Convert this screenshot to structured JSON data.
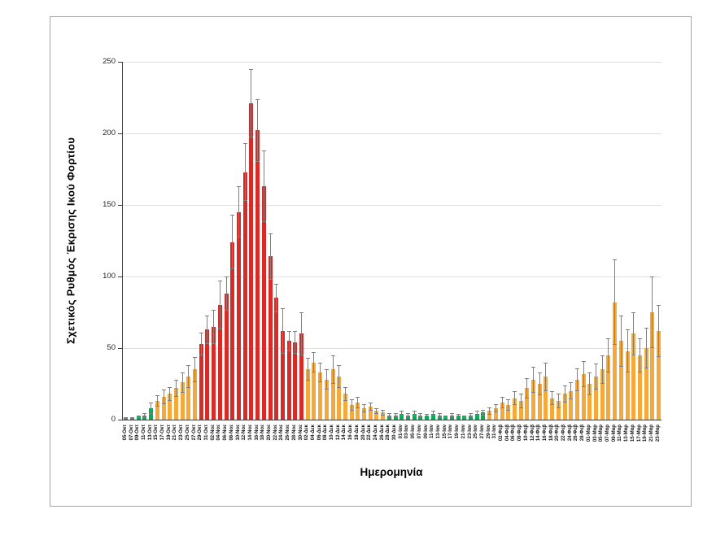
{
  "colors": {
    "green": "#00B050",
    "orange": "#F5A93B",
    "red": "#D62B27",
    "error": "#7f7f7f",
    "grid": "#dedede",
    "axis": "#3f3f3f"
  },
  "chart_data": {
    "type": "bar",
    "title": "",
    "xlabel": "Ημερομηνία",
    "ylabel": "Σχετικός Ρυθμός Έκρισης Ικού Φορτίου",
    "ylim": [
      0,
      250
    ],
    "y_ticks": [
      0,
      50,
      100,
      150,
      200,
      250
    ],
    "grid": true,
    "legend": false,
    "error_bars": true,
    "points": [
      {
        "date": "05-Οκτ",
        "value": 1,
        "error": 0.5,
        "color": "green"
      },
      {
        "date": "07-Οκτ",
        "value": 1,
        "error": 0.5,
        "color": "green"
      },
      {
        "date": "09-Οκτ",
        "value": 2,
        "error": 1,
        "color": "green"
      },
      {
        "date": "11-Οκτ",
        "value": 3,
        "error": 1.5,
        "color": "green"
      },
      {
        "date": "13-Οκτ",
        "value": 8,
        "error": 4,
        "color": "green"
      },
      {
        "date": "15-Οκτ",
        "value": 13,
        "error": 4,
        "color": "orange"
      },
      {
        "date": "17-Οκτ",
        "value": 16,
        "error": 5,
        "color": "orange"
      },
      {
        "date": "19-Οκτ",
        "value": 18,
        "error": 5,
        "color": "orange"
      },
      {
        "date": "21-Οκτ",
        "value": 22,
        "error": 6,
        "color": "orange"
      },
      {
        "date": "23-Οκτ",
        "value": 26,
        "error": 7,
        "color": "orange"
      },
      {
        "date": "25-Οκτ",
        "value": 30,
        "error": 8,
        "color": "orange"
      },
      {
        "date": "27-Οκτ",
        "value": 35,
        "error": 9,
        "color": "orange"
      },
      {
        "date": "29-Οκτ",
        "value": 53,
        "error": 8,
        "color": "red"
      },
      {
        "date": "31-Οκτ",
        "value": 63,
        "error": 10,
        "color": "red"
      },
      {
        "date": "02-Νοε",
        "value": 65,
        "error": 12,
        "color": "red"
      },
      {
        "date": "04-Νοε",
        "value": 80,
        "error": 17,
        "color": "red"
      },
      {
        "date": "06-Νοε",
        "value": 88,
        "error": 12,
        "color": "red"
      },
      {
        "date": "08-Νοε",
        "value": 124,
        "error": 19,
        "color": "red"
      },
      {
        "date": "10-Νοε",
        "value": 145,
        "error": 18,
        "color": "red"
      },
      {
        "date": "12-Νοε",
        "value": 173,
        "error": 20,
        "color": "red"
      },
      {
        "date": "14-Νοε",
        "value": 221,
        "error": 24,
        "color": "red"
      },
      {
        "date": "16-Νοε",
        "value": 202,
        "error": 22,
        "color": "red"
      },
      {
        "date": "18-Νοε",
        "value": 163,
        "error": 25,
        "color": "red"
      },
      {
        "date": "20-Νοε",
        "value": 114,
        "error": 16,
        "color": "red"
      },
      {
        "date": "22-Νοε",
        "value": 85,
        "error": 10,
        "color": "red"
      },
      {
        "date": "24-Νοε",
        "value": 62,
        "error": 16,
        "color": "red"
      },
      {
        "date": "26-Νοε",
        "value": 55,
        "error": 7,
        "color": "red"
      },
      {
        "date": "28-Νοε",
        "value": 54,
        "error": 8,
        "color": "red"
      },
      {
        "date": "30-Νοε",
        "value": 60,
        "error": 15,
        "color": "red"
      },
      {
        "date": "02-Δεκ",
        "value": 35,
        "error": 8,
        "color": "orange"
      },
      {
        "date": "04-Δεκ",
        "value": 40,
        "error": 7,
        "color": "orange"
      },
      {
        "date": "06-Δεκ",
        "value": 33,
        "error": 7,
        "color": "orange"
      },
      {
        "date": "08-Δεκ",
        "value": 28,
        "error": 7,
        "color": "orange"
      },
      {
        "date": "10-Δεκ",
        "value": 35,
        "error": 10,
        "color": "orange"
      },
      {
        "date": "12-Δεκ",
        "value": 30,
        "error": 8,
        "color": "orange"
      },
      {
        "date": "14-Δεκ",
        "value": 18,
        "error": 5,
        "color": "orange"
      },
      {
        "date": "16-Δεκ",
        "value": 10,
        "error": 4,
        "color": "orange"
      },
      {
        "date": "18-Δεκ",
        "value": 12,
        "error": 4,
        "color": "orange"
      },
      {
        "date": "20-Δεκ",
        "value": 8,
        "error": 3,
        "color": "orange"
      },
      {
        "date": "22-Δεκ",
        "value": 9,
        "error": 3,
        "color": "orange"
      },
      {
        "date": "24-Δεκ",
        "value": 6,
        "error": 2,
        "color": "orange"
      },
      {
        "date": "26-Δεκ",
        "value": 5,
        "error": 2,
        "color": "orange"
      },
      {
        "date": "28-Δεκ",
        "value": 3,
        "error": 1.5,
        "color": "green"
      },
      {
        "date": "30-Δεκ",
        "value": 3,
        "error": 1.5,
        "color": "green"
      },
      {
        "date": "01-Ιαν",
        "value": 4,
        "error": 2,
        "color": "green"
      },
      {
        "date": "03-Ιαν",
        "value": 3,
        "error": 1.5,
        "color": "green"
      },
      {
        "date": "05-Ιαν",
        "value": 4,
        "error": 2,
        "color": "green"
      },
      {
        "date": "07-Ιαν",
        "value": 3,
        "error": 1.5,
        "color": "green"
      },
      {
        "date": "09-Ιαν",
        "value": 3,
        "error": 1,
        "color": "green"
      },
      {
        "date": "11-Ιαν",
        "value": 4,
        "error": 2,
        "color": "green"
      },
      {
        "date": "13-Ιαν",
        "value": 3,
        "error": 1.5,
        "color": "green"
      },
      {
        "date": "15-Ιαν",
        "value": 2,
        "error": 1,
        "color": "green"
      },
      {
        "date": "17-Ιαν",
        "value": 3,
        "error": 1.5,
        "color": "green"
      },
      {
        "date": "19-Ιαν",
        "value": 3,
        "error": 1,
        "color": "green"
      },
      {
        "date": "21-Ιαν",
        "value": 2,
        "error": 1,
        "color": "green"
      },
      {
        "date": "23-Ιαν",
        "value": 3,
        "error": 1.5,
        "color": "green"
      },
      {
        "date": "25-Ιαν",
        "value": 4,
        "error": 2,
        "color": "green"
      },
      {
        "date": "27-Ιαν",
        "value": 5,
        "error": 2,
        "color": "green"
      },
      {
        "date": "29-Ιαν",
        "value": 6,
        "error": 2.5,
        "color": "orange"
      },
      {
        "date": "31-Ιαν",
        "value": 8,
        "error": 3,
        "color": "orange"
      },
      {
        "date": "02-Φεβ",
        "value": 12,
        "error": 4,
        "color": "orange"
      },
      {
        "date": "04-Φεβ",
        "value": 10,
        "error": 4,
        "color": "orange"
      },
      {
        "date": "06-Φεβ",
        "value": 15,
        "error": 5,
        "color": "orange"
      },
      {
        "date": "08-Φεβ",
        "value": 13,
        "error": 5,
        "color": "orange"
      },
      {
        "date": "10-Φεβ",
        "value": 22,
        "error": 7,
        "color": "orange"
      },
      {
        "date": "12-Φεβ",
        "value": 28,
        "error": 9,
        "color": "orange"
      },
      {
        "date": "14-Φεβ",
        "value": 25,
        "error": 8,
        "color": "orange"
      },
      {
        "date": "16-Φεβ",
        "value": 30,
        "error": 10,
        "color": "orange"
      },
      {
        "date": "18-Φεβ",
        "value": 15,
        "error": 5,
        "color": "orange"
      },
      {
        "date": "20-Φεβ",
        "value": 13,
        "error": 5,
        "color": "orange"
      },
      {
        "date": "22-Φεβ",
        "value": 18,
        "error": 6,
        "color": "orange"
      },
      {
        "date": "24-Φεβ",
        "value": 20,
        "error": 6,
        "color": "orange"
      },
      {
        "date": "26-Φεβ",
        "value": 28,
        "error": 8,
        "color": "orange"
      },
      {
        "date": "28-Φεβ",
        "value": 32,
        "error": 9,
        "color": "orange"
      },
      {
        "date": "01-Μαρ",
        "value": 25,
        "error": 8,
        "color": "orange"
      },
      {
        "date": "03-Μαρ",
        "value": 30,
        "error": 9,
        "color": "orange"
      },
      {
        "date": "05-Μαρ",
        "value": 35,
        "error": 10,
        "color": "orange"
      },
      {
        "date": "07-Μαρ",
        "value": 45,
        "error": 12,
        "color": "orange"
      },
      {
        "date": "09-Μαρ",
        "value": 82,
        "error": 30,
        "color": "orange"
      },
      {
        "date": "11-Μαρ",
        "value": 55,
        "error": 18,
        "color": "orange"
      },
      {
        "date": "13-Μαρ",
        "value": 48,
        "error": 15,
        "color": "orange"
      },
      {
        "date": "15-Μαρ",
        "value": 60,
        "error": 15,
        "color": "orange"
      },
      {
        "date": "17-Μαρ",
        "value": 45,
        "error": 12,
        "color": "orange"
      },
      {
        "date": "19-Μαρ",
        "value": 50,
        "error": 14,
        "color": "orange"
      },
      {
        "date": "21-Μαρ",
        "value": 75,
        "error": 25,
        "color": "orange"
      },
      {
        "date": "23-Μαρ",
        "value": 62,
        "error": 18,
        "color": "orange"
      }
    ]
  }
}
